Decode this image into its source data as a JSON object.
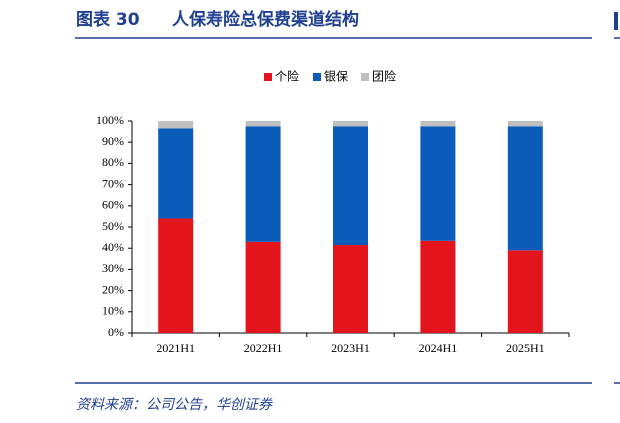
{
  "chart_data": {
    "type": "stacked_bar",
    "figure_label": "图表 30",
    "title": "人保寿险总保费渠道结构",
    "source": "资料来源：公司公告，华创证券",
    "categories": [
      "2021H1",
      "2022H1",
      "2023H1",
      "2024H1",
      "2025H1"
    ],
    "series": [
      {
        "name": "个险",
        "color": "#e3141c",
        "values": [
          54,
          43,
          41.5,
          43.5,
          39
        ]
      },
      {
        "name": "银保",
        "color": "#0a5cb8",
        "values": [
          42.5,
          54.5,
          56,
          54,
          58.5
        ]
      },
      {
        "name": "团险",
        "color": "#bfbfbf",
        "values": [
          3.5,
          2.5,
          2.5,
          2.5,
          2.5
        ]
      }
    ],
    "ylim": [
      0,
      100
    ],
    "yticks": [
      {
        "value": 0,
        "label": "0%"
      },
      {
        "value": 10,
        "label": "10%"
      },
      {
        "value": 20,
        "label": "20%"
      },
      {
        "value": 30,
        "label": "30%"
      },
      {
        "value": 40,
        "label": "40%"
      },
      {
        "value": 50,
        "label": "50%"
      },
      {
        "value": 60,
        "label": "60%"
      },
      {
        "value": 70,
        "label": "70%"
      },
      {
        "value": 80,
        "label": "80%"
      },
      {
        "value": 90,
        "label": "90%"
      },
      {
        "value": 100,
        "label": "100%"
      }
    ],
    "legend": "top"
  }
}
